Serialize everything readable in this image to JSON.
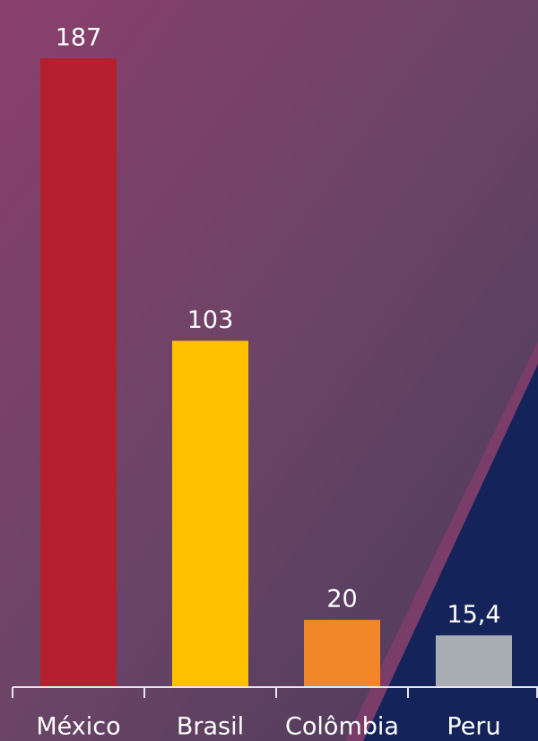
{
  "chart_data": {
    "type": "bar",
    "categories": [
      "México",
      "Brasil",
      "Colômbia",
      "Peru"
    ],
    "values": [
      187,
      103,
      20,
      15.4
    ],
    "value_labels": [
      "187",
      "103",
      "20",
      "15,4"
    ],
    "colors": [
      "#b5202e",
      "#ffc000",
      "#f4862a",
      "#a8adb4"
    ]
  }
}
